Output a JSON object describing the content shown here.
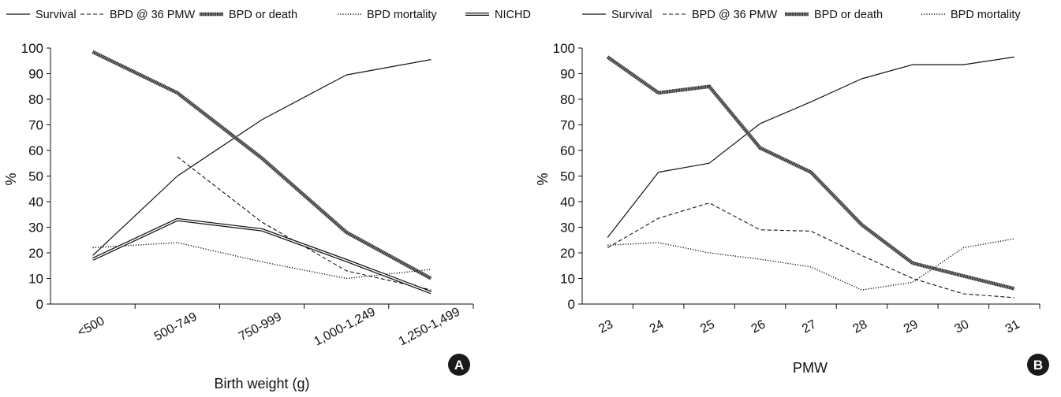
{
  "chart_data": [
    {
      "type": "line",
      "panel_label": "A",
      "categories": [
        "<500",
        "500-749",
        "750-999",
        "1,000-1,249",
        "1,250-1,499"
      ],
      "xlabel": "Birth weight (g)",
      "ylabel": "%",
      "ylim": [
        0,
        100
      ],
      "yticks": [
        0,
        10,
        20,
        30,
        40,
        50,
        60,
        70,
        80,
        90,
        100
      ],
      "legend": "top",
      "series": [
        {
          "name": "Survival",
          "style": "solid",
          "values": [
            19,
            50,
            72,
            89.5,
            95.5
          ]
        },
        {
          "name": "BPD @ 36 PMW",
          "style": "dashed",
          "values": [
            null,
            57.5,
            32,
            13,
            5.5
          ]
        },
        {
          "name": "BPD or death",
          "style": "hatched",
          "values": [
            98.5,
            82.5,
            57,
            28,
            10
          ]
        },
        {
          "name": "BPD mortality",
          "style": "dotted",
          "values": [
            22,
            24,
            16.5,
            10,
            13.5
          ]
        },
        {
          "name": "NICHD",
          "style": "double",
          "values": [
            17.5,
            33,
            29,
            17,
            4.5
          ]
        }
      ]
    },
    {
      "type": "line",
      "panel_label": "B",
      "categories": [
        "23",
        "24",
        "25",
        "26",
        "27",
        "28",
        "29",
        "30",
        "31"
      ],
      "xlabel": "PMW",
      "ylabel": "%",
      "ylim": [
        0,
        100
      ],
      "yticks": [
        0,
        10,
        20,
        30,
        40,
        50,
        60,
        70,
        80,
        90,
        100
      ],
      "legend": "top",
      "series": [
        {
          "name": "Survival",
          "style": "solid",
          "values": [
            26,
            51.5,
            55,
            70.5,
            79,
            88,
            93.5,
            93.5,
            96.5
          ]
        },
        {
          "name": "BPD @ 36 PMW",
          "style": "dashed",
          "values": [
            22,
            33.5,
            39.5,
            29,
            28.5,
            19,
            10,
            4,
            2.5
          ]
        },
        {
          "name": "BPD or death",
          "style": "hatched",
          "values": [
            96.5,
            82.5,
            85,
            61,
            51.5,
            31,
            16,
            11,
            6
          ]
        },
        {
          "name": "BPD mortality",
          "style": "dotted",
          "values": [
            23,
            24,
            20,
            17.5,
            14.5,
            5.5,
            8.5,
            22,
            25.5
          ]
        }
      ]
    }
  ]
}
